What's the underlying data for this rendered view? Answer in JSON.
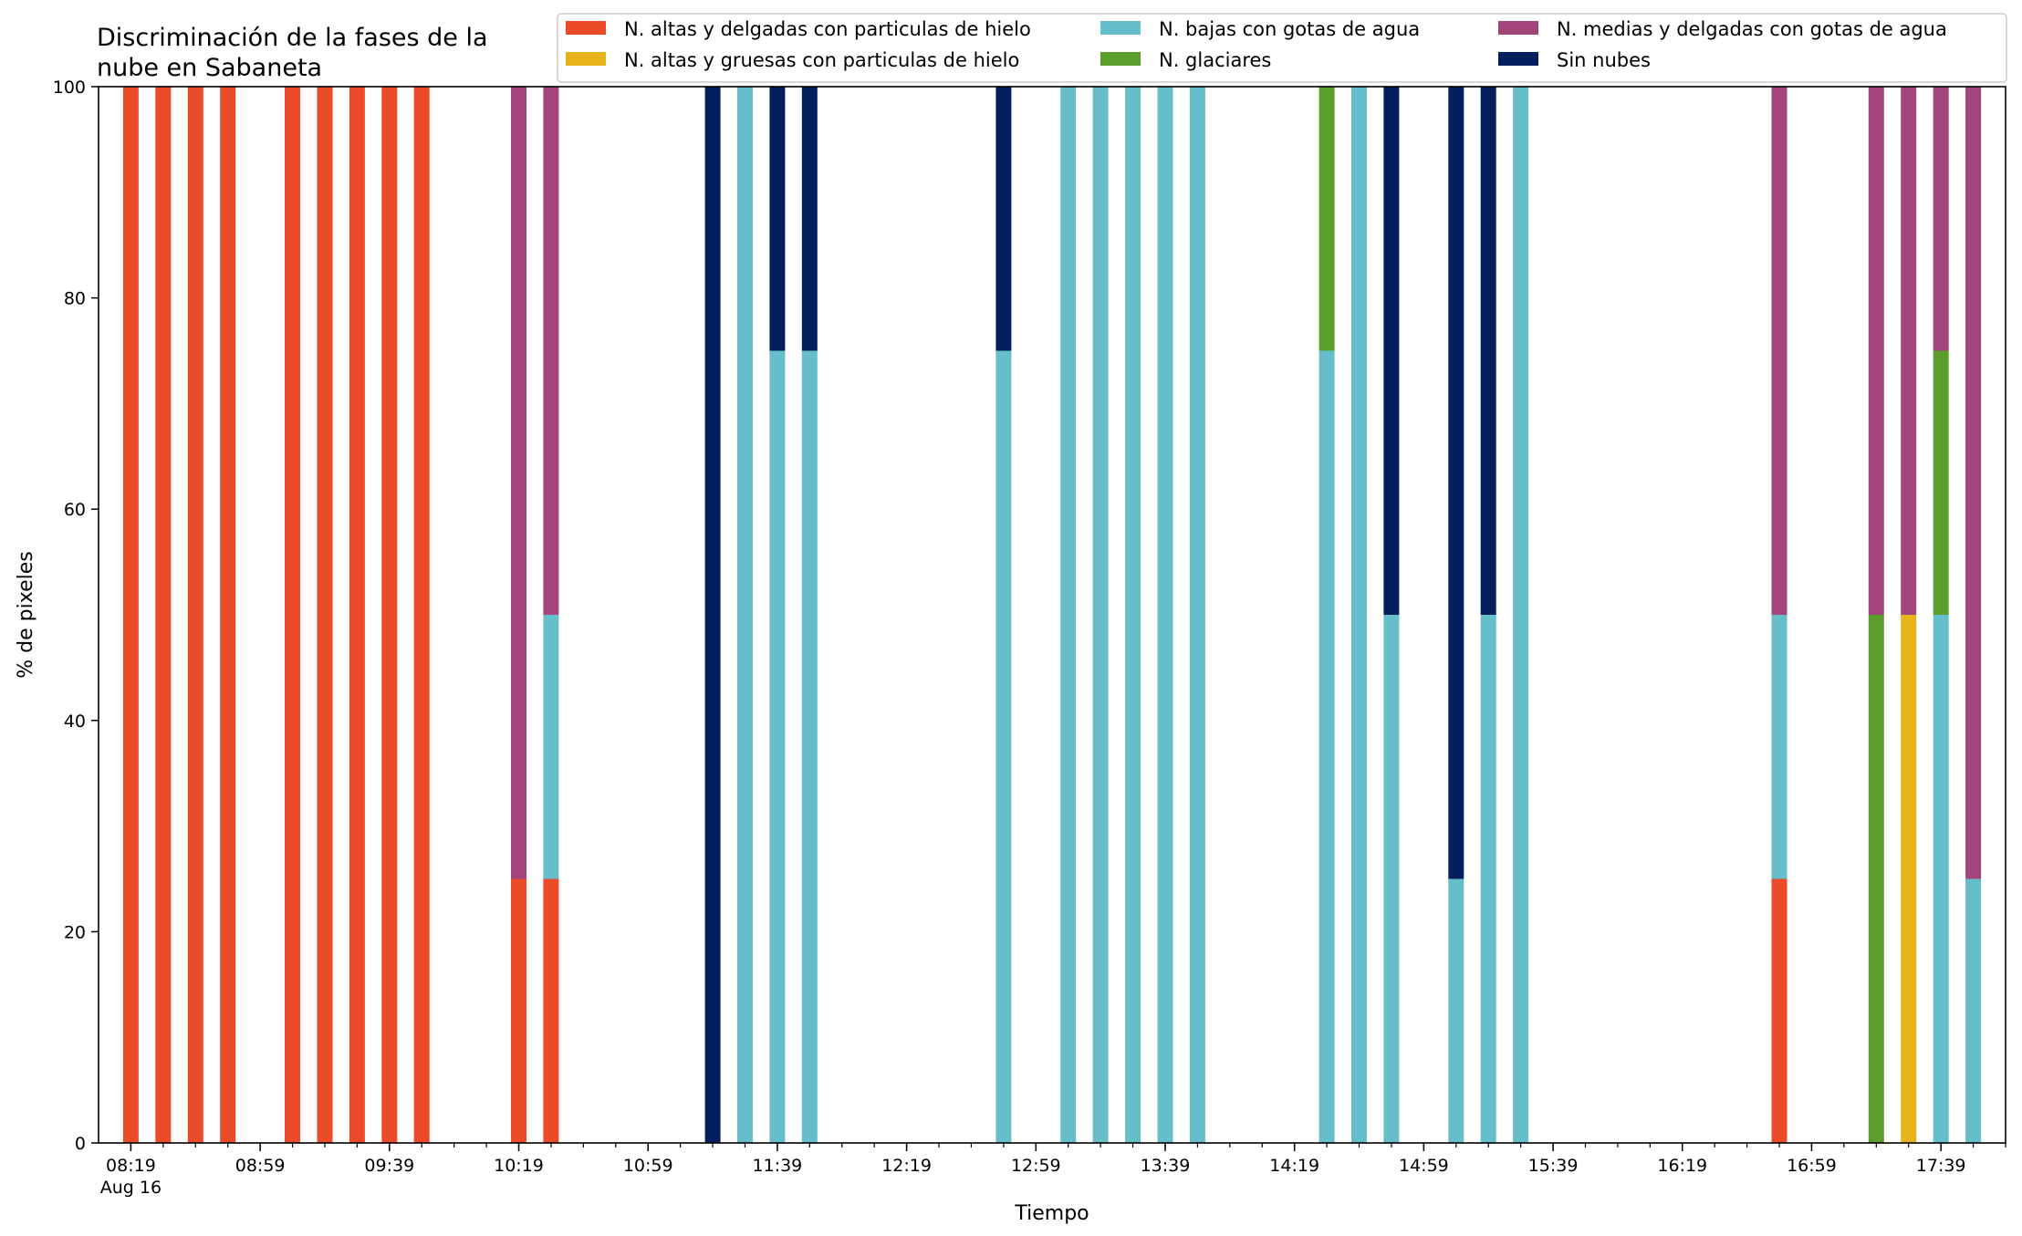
{
  "chart_data": {
    "type": "bar",
    "stacked": true,
    "title": "Discriminación de la fases de la\nnube en Sabaneta",
    "xlabel": "Tiempo",
    "ylabel": "% de pixeles",
    "ylim": [
      0,
      100
    ],
    "y_ticks": [
      0,
      20,
      40,
      60,
      80,
      100
    ],
    "x_tick_labels": [
      "08:19",
      "08:59",
      "09:39",
      "10:19",
      "10:59",
      "11:39",
      "12:19",
      "12:59",
      "13:39",
      "14:19",
      "14:59",
      "15:39",
      "16:19",
      "16:59",
      "17:39"
    ],
    "x_date_label": "Aug 16",
    "x_minor_step_minutes": 10,
    "grid": false,
    "legend_position": "top-right",
    "series": [
      {
        "name": "N. altas y delgadas con particulas de hielo",
        "color": "#ec4b2a"
      },
      {
        "name": "N. altas y gruesas con particulas de hielo",
        "color": "#e6b41a"
      },
      {
        "name": "N. bajas con gotas de agua",
        "color": "#65bec9"
      },
      {
        "name": "N. glaciares",
        "color": "#5b9e2b"
      },
      {
        "name": "N. medias y delgadas con gotas de agua",
        "color": "#a1457a"
      },
      {
        "name": "Sin nubes",
        "color": "#041f5d"
      }
    ],
    "bars": [
      {
        "x": "08:19",
        "values": [
          100,
          0,
          0,
          0,
          0,
          0
        ]
      },
      {
        "x": "08:29",
        "values": [
          100,
          0,
          0,
          0,
          0,
          0
        ]
      },
      {
        "x": "08:39",
        "values": [
          100,
          0,
          0,
          0,
          0,
          0
        ]
      },
      {
        "x": "08:49",
        "values": [
          100,
          0,
          0,
          0,
          0,
          0
        ]
      },
      {
        "x": "09:09",
        "values": [
          100,
          0,
          0,
          0,
          0,
          0
        ]
      },
      {
        "x": "09:19",
        "values": [
          100,
          0,
          0,
          0,
          0,
          0
        ]
      },
      {
        "x": "09:29",
        "values": [
          100,
          0,
          0,
          0,
          0,
          0
        ]
      },
      {
        "x": "09:39",
        "values": [
          100,
          0,
          0,
          0,
          0,
          0
        ]
      },
      {
        "x": "09:49",
        "values": [
          100,
          0,
          0,
          0,
          0,
          0
        ]
      },
      {
        "x": "10:19",
        "values": [
          25,
          0,
          0,
          0,
          75,
          0
        ]
      },
      {
        "x": "10:29",
        "values": [
          25,
          0,
          25,
          0,
          50,
          0
        ]
      },
      {
        "x": "11:19",
        "values": [
          0,
          0,
          0,
          0,
          0,
          100
        ]
      },
      {
        "x": "11:29",
        "values": [
          0,
          0,
          100,
          0,
          0,
          0
        ]
      },
      {
        "x": "11:39",
        "values": [
          0,
          0,
          75,
          0,
          0,
          25
        ]
      },
      {
        "x": "11:49",
        "values": [
          0,
          0,
          75,
          0,
          0,
          25
        ]
      },
      {
        "x": "12:49",
        "values": [
          0,
          0,
          75,
          0,
          0,
          25
        ]
      },
      {
        "x": "13:09",
        "values": [
          0,
          0,
          100,
          0,
          0,
          0
        ]
      },
      {
        "x": "13:19",
        "values": [
          0,
          0,
          100,
          0,
          0,
          0
        ]
      },
      {
        "x": "13:29",
        "values": [
          0,
          0,
          100,
          0,
          0,
          0
        ]
      },
      {
        "x": "13:39",
        "values": [
          0,
          0,
          100,
          0,
          0,
          0
        ]
      },
      {
        "x": "13:49",
        "values": [
          0,
          0,
          100,
          0,
          0,
          0
        ]
      },
      {
        "x": "14:29",
        "values": [
          0,
          0,
          75,
          25,
          0,
          0
        ]
      },
      {
        "x": "14:39",
        "values": [
          0,
          0,
          100,
          0,
          0,
          0
        ]
      },
      {
        "x": "14:49",
        "values": [
          0,
          0,
          50,
          0,
          0,
          50
        ]
      },
      {
        "x": "15:09",
        "values": [
          0,
          0,
          25,
          0,
          0,
          75
        ]
      },
      {
        "x": "15:19",
        "values": [
          0,
          0,
          50,
          0,
          0,
          50
        ]
      },
      {
        "x": "15:29",
        "values": [
          0,
          0,
          100,
          0,
          0,
          0
        ]
      },
      {
        "x": "16:49",
        "values": [
          25,
          0,
          25,
          0,
          50,
          0
        ]
      },
      {
        "x": "17:19",
        "values": [
          0,
          0,
          0,
          50,
          50,
          0
        ]
      },
      {
        "x": "17:29",
        "values": [
          0,
          50,
          0,
          0,
          50,
          0
        ]
      },
      {
        "x": "17:39",
        "values": [
          0,
          0,
          50,
          25,
          25,
          0
        ]
      },
      {
        "x": "17:49",
        "values": [
          0,
          0,
          25,
          0,
          75,
          0
        ]
      }
    ]
  }
}
